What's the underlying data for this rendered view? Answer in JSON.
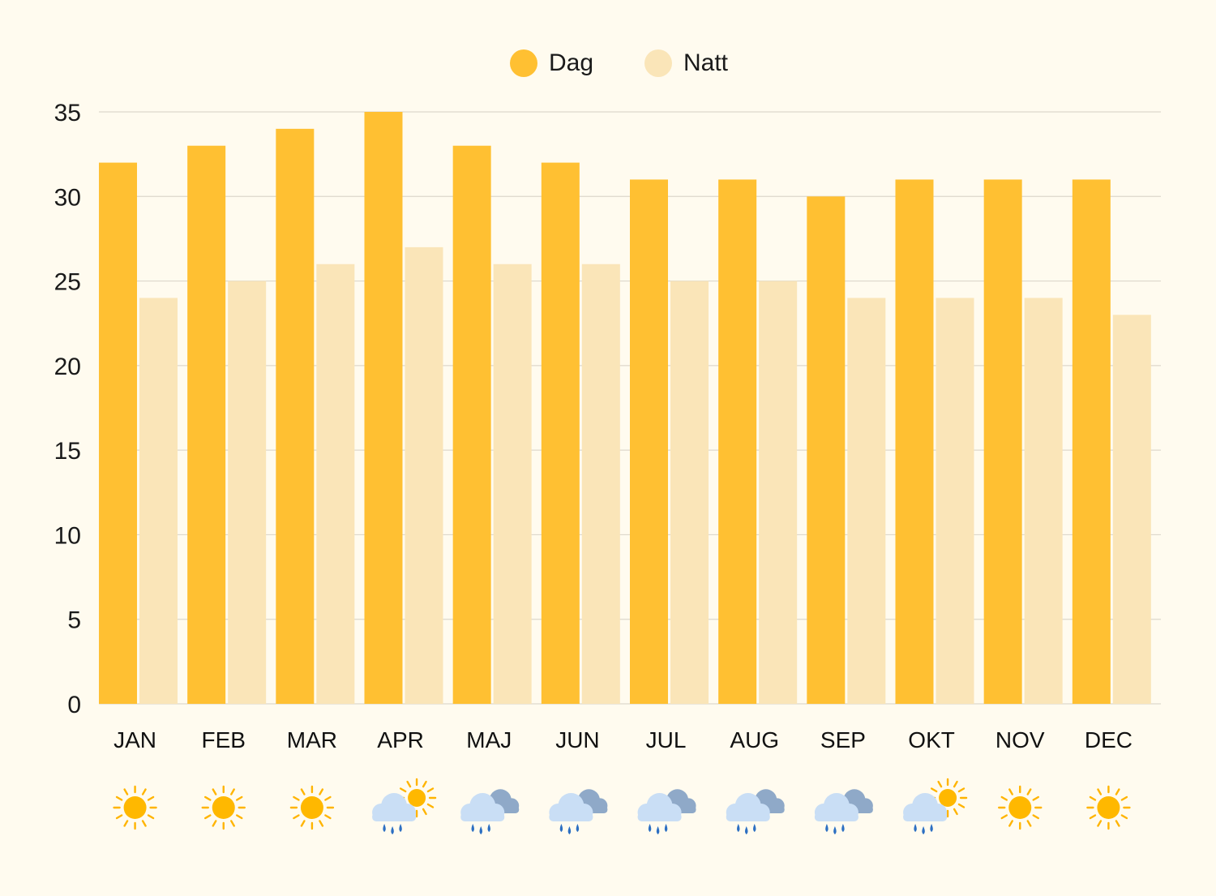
{
  "chart_data": {
    "type": "bar",
    "categories": [
      "JAN",
      "FEB",
      "MAR",
      "APR",
      "MAJ",
      "JUN",
      "JUL",
      "AUG",
      "SEP",
      "OKT",
      "NOV",
      "DEC"
    ],
    "series": [
      {
        "name": "Dag",
        "color": "#FFC032",
        "values": [
          32,
          33,
          34,
          35,
          33,
          32,
          31,
          31,
          30,
          31,
          31,
          31
        ]
      },
      {
        "name": "Natt",
        "color": "#FAE5B8",
        "values": [
          24,
          25,
          26,
          27,
          26,
          26,
          25,
          25,
          24,
          24,
          24,
          23
        ]
      }
    ],
    "ylim": [
      0,
      35
    ],
    "yticks": [
      0,
      5,
      10,
      15,
      20,
      25,
      30,
      35
    ],
    "grid": true,
    "legend_position": "top-center",
    "weather_icons": [
      "sun-icon",
      "sun-icon",
      "sun-icon",
      "rain-sun-icon",
      "rain-cloud-icon",
      "rain-cloud-icon",
      "rain-cloud-icon",
      "rain-cloud-icon",
      "rain-cloud-icon",
      "rain-sun-icon",
      "sun-icon",
      "sun-icon"
    ]
  }
}
